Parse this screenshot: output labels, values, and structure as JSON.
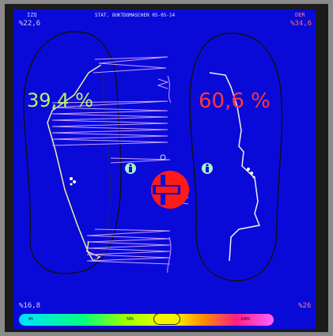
{
  "header": {
    "title": "STAT. OUKTDOMASCHEN 05-05-14",
    "left_side": "IZQ",
    "right_side": "DER",
    "left_top_pct": "%22,6",
    "right_top_pct": "%34,6"
  },
  "load": {
    "left_pct": "39,4 %",
    "right_pct": "60,6 %"
  },
  "footer": {
    "left_bottom_pct": "%16,8",
    "right_bottom_pct": "%26"
  },
  "scale": {
    "low": "0%",
    "mid": "50%",
    "high": "100%"
  },
  "colors": {
    "background": "#0a0ad8",
    "left_load": "#b7f06a",
    "right_load": "#ff3838",
    "trace": "#d9b0ff",
    "outline": "#101010"
  },
  "icons": {
    "left_foot": "foot-icon",
    "right_foot": "foot-icon",
    "center_of_pressure": "center-of-pressure-icon"
  }
}
